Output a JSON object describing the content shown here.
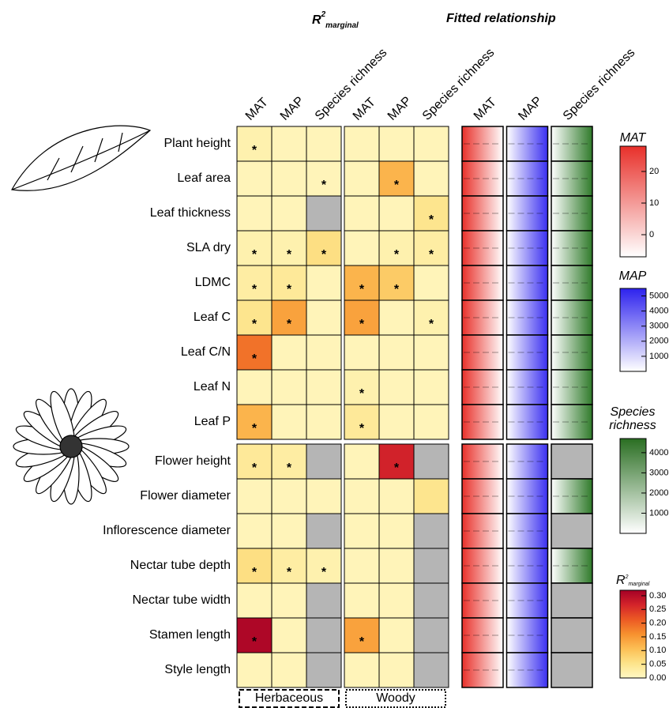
{
  "chart_data": {
    "type": "heatmap",
    "title_parts": [
      "R",
      "2",
      "marginal"
    ],
    "rows": [
      "Plant height",
      "Leaf area",
      "Leaf thickness",
      "SLA dry",
      "LDMC",
      "Leaf C",
      "Leaf C/N",
      "Leaf N",
      "Leaf P",
      "Flower height",
      "Flower diameter",
      "Inflorescence diameter",
      "Nectar tube depth",
      "Nectar tube width",
      "Stamen length",
      "Style length"
    ],
    "columns": [
      "MAT",
      "MAP",
      "Species richness",
      "MAT",
      "MAP",
      "Species richness"
    ],
    "groups": [
      "Herbaceous",
      "Woody"
    ],
    "values": [
      [
        0.02,
        0.01,
        0.01,
        0.01,
        0.01,
        0.01
      ],
      [
        0.01,
        0.01,
        0.01,
        0.01,
        0.12,
        0.01
      ],
      [
        0.01,
        0.01,
        null,
        0.01,
        0.01,
        0.05
      ],
      [
        0.02,
        0.02,
        0.06,
        0.01,
        0.02,
        0.03
      ],
      [
        0.03,
        0.04,
        0.01,
        0.12,
        0.09,
        0.01
      ],
      [
        0.05,
        0.14,
        0.01,
        0.14,
        0.01,
        0.02
      ],
      [
        0.19,
        0.01,
        0.01,
        0.01,
        0.01,
        0.01
      ],
      [
        0.01,
        0.01,
        0.01,
        0.02,
        0.01,
        0.01
      ],
      [
        0.12,
        0.01,
        0.01,
        0.04,
        0.01,
        0.01
      ],
      [
        0.04,
        0.03,
        null,
        0.01,
        0.27,
        null
      ],
      [
        0.01,
        0.01,
        0.01,
        0.01,
        0.01,
        0.05
      ],
      [
        0.01,
        0.01,
        null,
        0.01,
        0.01,
        null
      ],
      [
        0.06,
        0.03,
        0.02,
        0.01,
        0.01,
        null
      ],
      [
        0.01,
        0.01,
        null,
        0.01,
        0.01,
        null
      ],
      [
        0.31,
        0.01,
        null,
        0.14,
        0.01,
        null
      ],
      [
        0.01,
        0.01,
        null,
        0.01,
        0.01,
        null
      ]
    ],
    "star_label": "*",
    "star_colors": [
      [
        "#000000",
        null,
        null,
        null,
        null,
        null
      ],
      [
        null,
        null,
        "#a8a8a8",
        null,
        "#000000",
        null
      ],
      [
        null,
        null,
        null,
        null,
        null,
        "#000000"
      ],
      [
        "#000000",
        "#000000",
        "#000000",
        null,
        "#a8a8a8",
        "#000000"
      ],
      [
        "#000000",
        "#000000",
        null,
        "#000000",
        "#000000",
        null
      ],
      [
        "#a8a8a8",
        "#000000",
        null,
        "#000000",
        null,
        "#a8a8a8"
      ],
      [
        "#000000",
        null,
        null,
        null,
        null,
        null
      ],
      [
        null,
        null,
        null,
        "#000000",
        null,
        null
      ],
      [
        "#000000",
        null,
        null,
        "#a8a8a8",
        null,
        null
      ],
      [
        "#000000",
        "#000000",
        null,
        null,
        "#000000",
        null
      ],
      [
        null,
        null,
        null,
        null,
        null,
        null
      ],
      [
        null,
        null,
        null,
        null,
        null,
        null
      ],
      [
        "#000000",
        "#a8a8a8",
        "#000000",
        null,
        null,
        null
      ],
      [
        null,
        null,
        null,
        null,
        null,
        null
      ],
      [
        "#000000",
        null,
        null,
        "#000000",
        null,
        null
      ],
      [
        null,
        null,
        null,
        null,
        null,
        null
      ]
    ],
    "fitted": {
      "title": "Fitted relationship",
      "columns": [
        "MAT",
        "MAP",
        "Species richness"
      ],
      "colors": [
        "#e8302a",
        "#3a2ff0",
        "#2f7a2a"
      ],
      "available": [
        [
          true,
          true,
          true
        ],
        [
          true,
          true,
          true
        ],
        [
          true,
          true,
          true
        ],
        [
          true,
          true,
          true
        ],
        [
          true,
          true,
          true
        ],
        [
          true,
          true,
          true
        ],
        [
          true,
          true,
          true
        ],
        [
          true,
          true,
          true
        ],
        [
          true,
          true,
          true
        ],
        [
          true,
          true,
          false
        ],
        [
          true,
          true,
          true
        ],
        [
          true,
          true,
          false
        ],
        [
          true,
          true,
          true
        ],
        [
          true,
          true,
          false
        ],
        [
          true,
          true,
          false
        ],
        [
          true,
          true,
          false
        ]
      ]
    },
    "legends": [
      {
        "title": "MAT",
        "ylim": [
          -7,
          28
        ],
        "yticks": [
          0,
          10,
          20
        ],
        "colors": [
          "#ffffff",
          "#e8302a"
        ]
      },
      {
        "title": "MAP",
        "ylim": [
          0,
          5500
        ],
        "yticks": [
          1000,
          2000,
          3000,
          4000,
          5000
        ],
        "colors": [
          "#ffffff",
          "#2d22ee"
        ]
      },
      {
        "title": "Species richness",
        "ylim": [
          0,
          4700
        ],
        "yticks": [
          1000,
          2000,
          3000,
          4000
        ],
        "colors": [
          "#ffffff",
          "#2a6e22"
        ]
      },
      {
        "title_parts": [
          "R",
          "2",
          "marginal"
        ],
        "ylim": [
          0,
          0.32
        ],
        "yticks": [
          {
            "value": 0,
            "label": "0.00"
          },
          0.05,
          {
            "value": 0.1,
            "label": "0.10"
          },
          0.15,
          {
            "value": 0.2,
            "label": "0.20"
          },
          0.25,
          {
            "value": 0.3,
            "label": "0.30"
          }
        ],
        "colors": [
          "#fff8c4",
          "#fde48a",
          "#fcbf55",
          "#f7912f",
          "#ec5a24",
          "#d4242a",
          "#a50026"
        ]
      }
    ]
  }
}
